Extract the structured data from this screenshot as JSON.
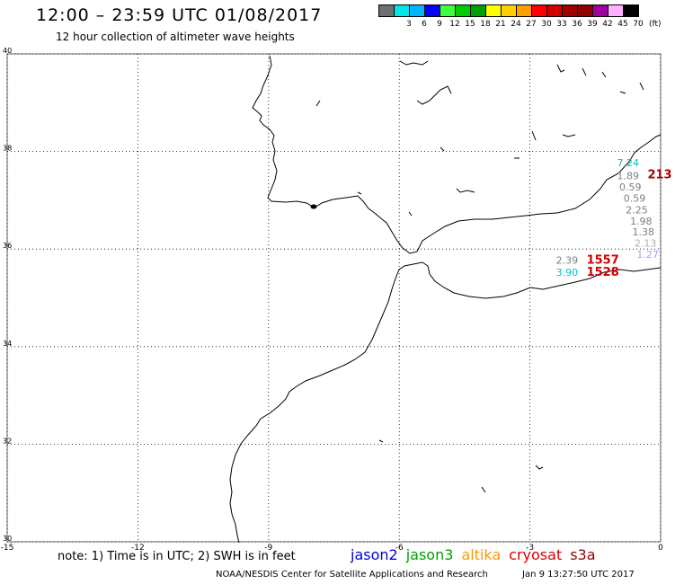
{
  "header": {
    "title": "12:00 – 23:59 UTC 01/08/2017",
    "subtitle": "12 hour collection of altimeter wave heights"
  },
  "color_scale": {
    "unit": "(ft)",
    "items": [
      {
        "label": "",
        "color": "#707070"
      },
      {
        "label": "3",
        "color": "#00e5e5"
      },
      {
        "label": "6",
        "color": "#00b4ff"
      },
      {
        "label": "9",
        "color": "#0000ff"
      },
      {
        "label": "12",
        "color": "#40ff40"
      },
      {
        "label": "15",
        "color": "#00cc00"
      },
      {
        "label": "18",
        "color": "#00a000"
      },
      {
        "label": "21",
        "color": "#ffff00"
      },
      {
        "label": "24",
        "color": "#ffd000"
      },
      {
        "label": "27",
        "color": "#ffa000"
      },
      {
        "label": "30",
        "color": "#ff0000"
      },
      {
        "label": "33",
        "color": "#d00000"
      },
      {
        "label": "36",
        "color": "#a00000"
      },
      {
        "label": "39",
        "color": "#900000"
      },
      {
        "label": "42",
        "color": "#a000a0"
      },
      {
        "label": "45",
        "color": "#ffb0ff"
      },
      {
        "label": "70",
        "color": "#000000"
      }
    ]
  },
  "map": {
    "lon_range": [
      -15,
      0
    ],
    "lat_range": [
      30,
      40
    ],
    "x_ticks": [
      "-15",
      "-12",
      "-9",
      "-6",
      "-3",
      "0"
    ],
    "y_ticks": [
      "40",
      "38",
      "36",
      "34",
      "32",
      "30"
    ],
    "observations": [
      {
        "text": "7.24",
        "color": "#00c0c0",
        "lon": -1.0,
        "lat": 37.7
      },
      {
        "text": "213",
        "color": "#a00000",
        "lon": -0.3,
        "lat": 37.45
      },
      {
        "text": "1.89",
        "color": "#808080",
        "lon": -1.0,
        "lat": 37.43
      },
      {
        "text": "0.59",
        "color": "#808080",
        "lon": -0.95,
        "lat": 37.2
      },
      {
        "text": "0.59",
        "color": "#808080",
        "lon": -0.85,
        "lat": 36.97
      },
      {
        "text": "2.25",
        "color": "#808080",
        "lon": -0.8,
        "lat": 36.73
      },
      {
        "text": "1.98",
        "color": "#808080",
        "lon": -0.7,
        "lat": 36.5
      },
      {
        "text": "1.38",
        "color": "#808080",
        "lon": -0.65,
        "lat": 36.28
      },
      {
        "text": "2.13",
        "color": "#b0b0b0",
        "lon": -0.6,
        "lat": 36.05
      },
      {
        "text": "1.27",
        "color": "#a0a0ff",
        "lon": -0.55,
        "lat": 35.82
      },
      {
        "text": "2.39",
        "color": "#808080",
        "lon": -2.4,
        "lat": 35.7
      },
      {
        "text": "1557",
        "color": "#d00000",
        "lon": -1.7,
        "lat": 35.7
      },
      {
        "text": "3.90",
        "color": "#00c0c0",
        "lon": -2.4,
        "lat": 35.45
      },
      {
        "text": "1528",
        "color": "#d00000",
        "lon": -1.7,
        "lat": 35.45
      }
    ]
  },
  "note": "note: 1) Time is in UTC; 2) SWH is in feet",
  "satellites": [
    {
      "name": "jason2",
      "color": "#0000dd"
    },
    {
      "name": "jason3",
      "color": "#00a000"
    },
    {
      "name": "altika",
      "color": "#ff9900"
    },
    {
      "name": "cryosat",
      "color": "#dd0000"
    },
    {
      "name": "s3a",
      "color": "#990000"
    }
  ],
  "footer": {
    "credit": "NOAA/NESDIS Center for Satellite Applications and Research",
    "timestamp": "Jan  9 13:27:50 UTC 2017"
  }
}
